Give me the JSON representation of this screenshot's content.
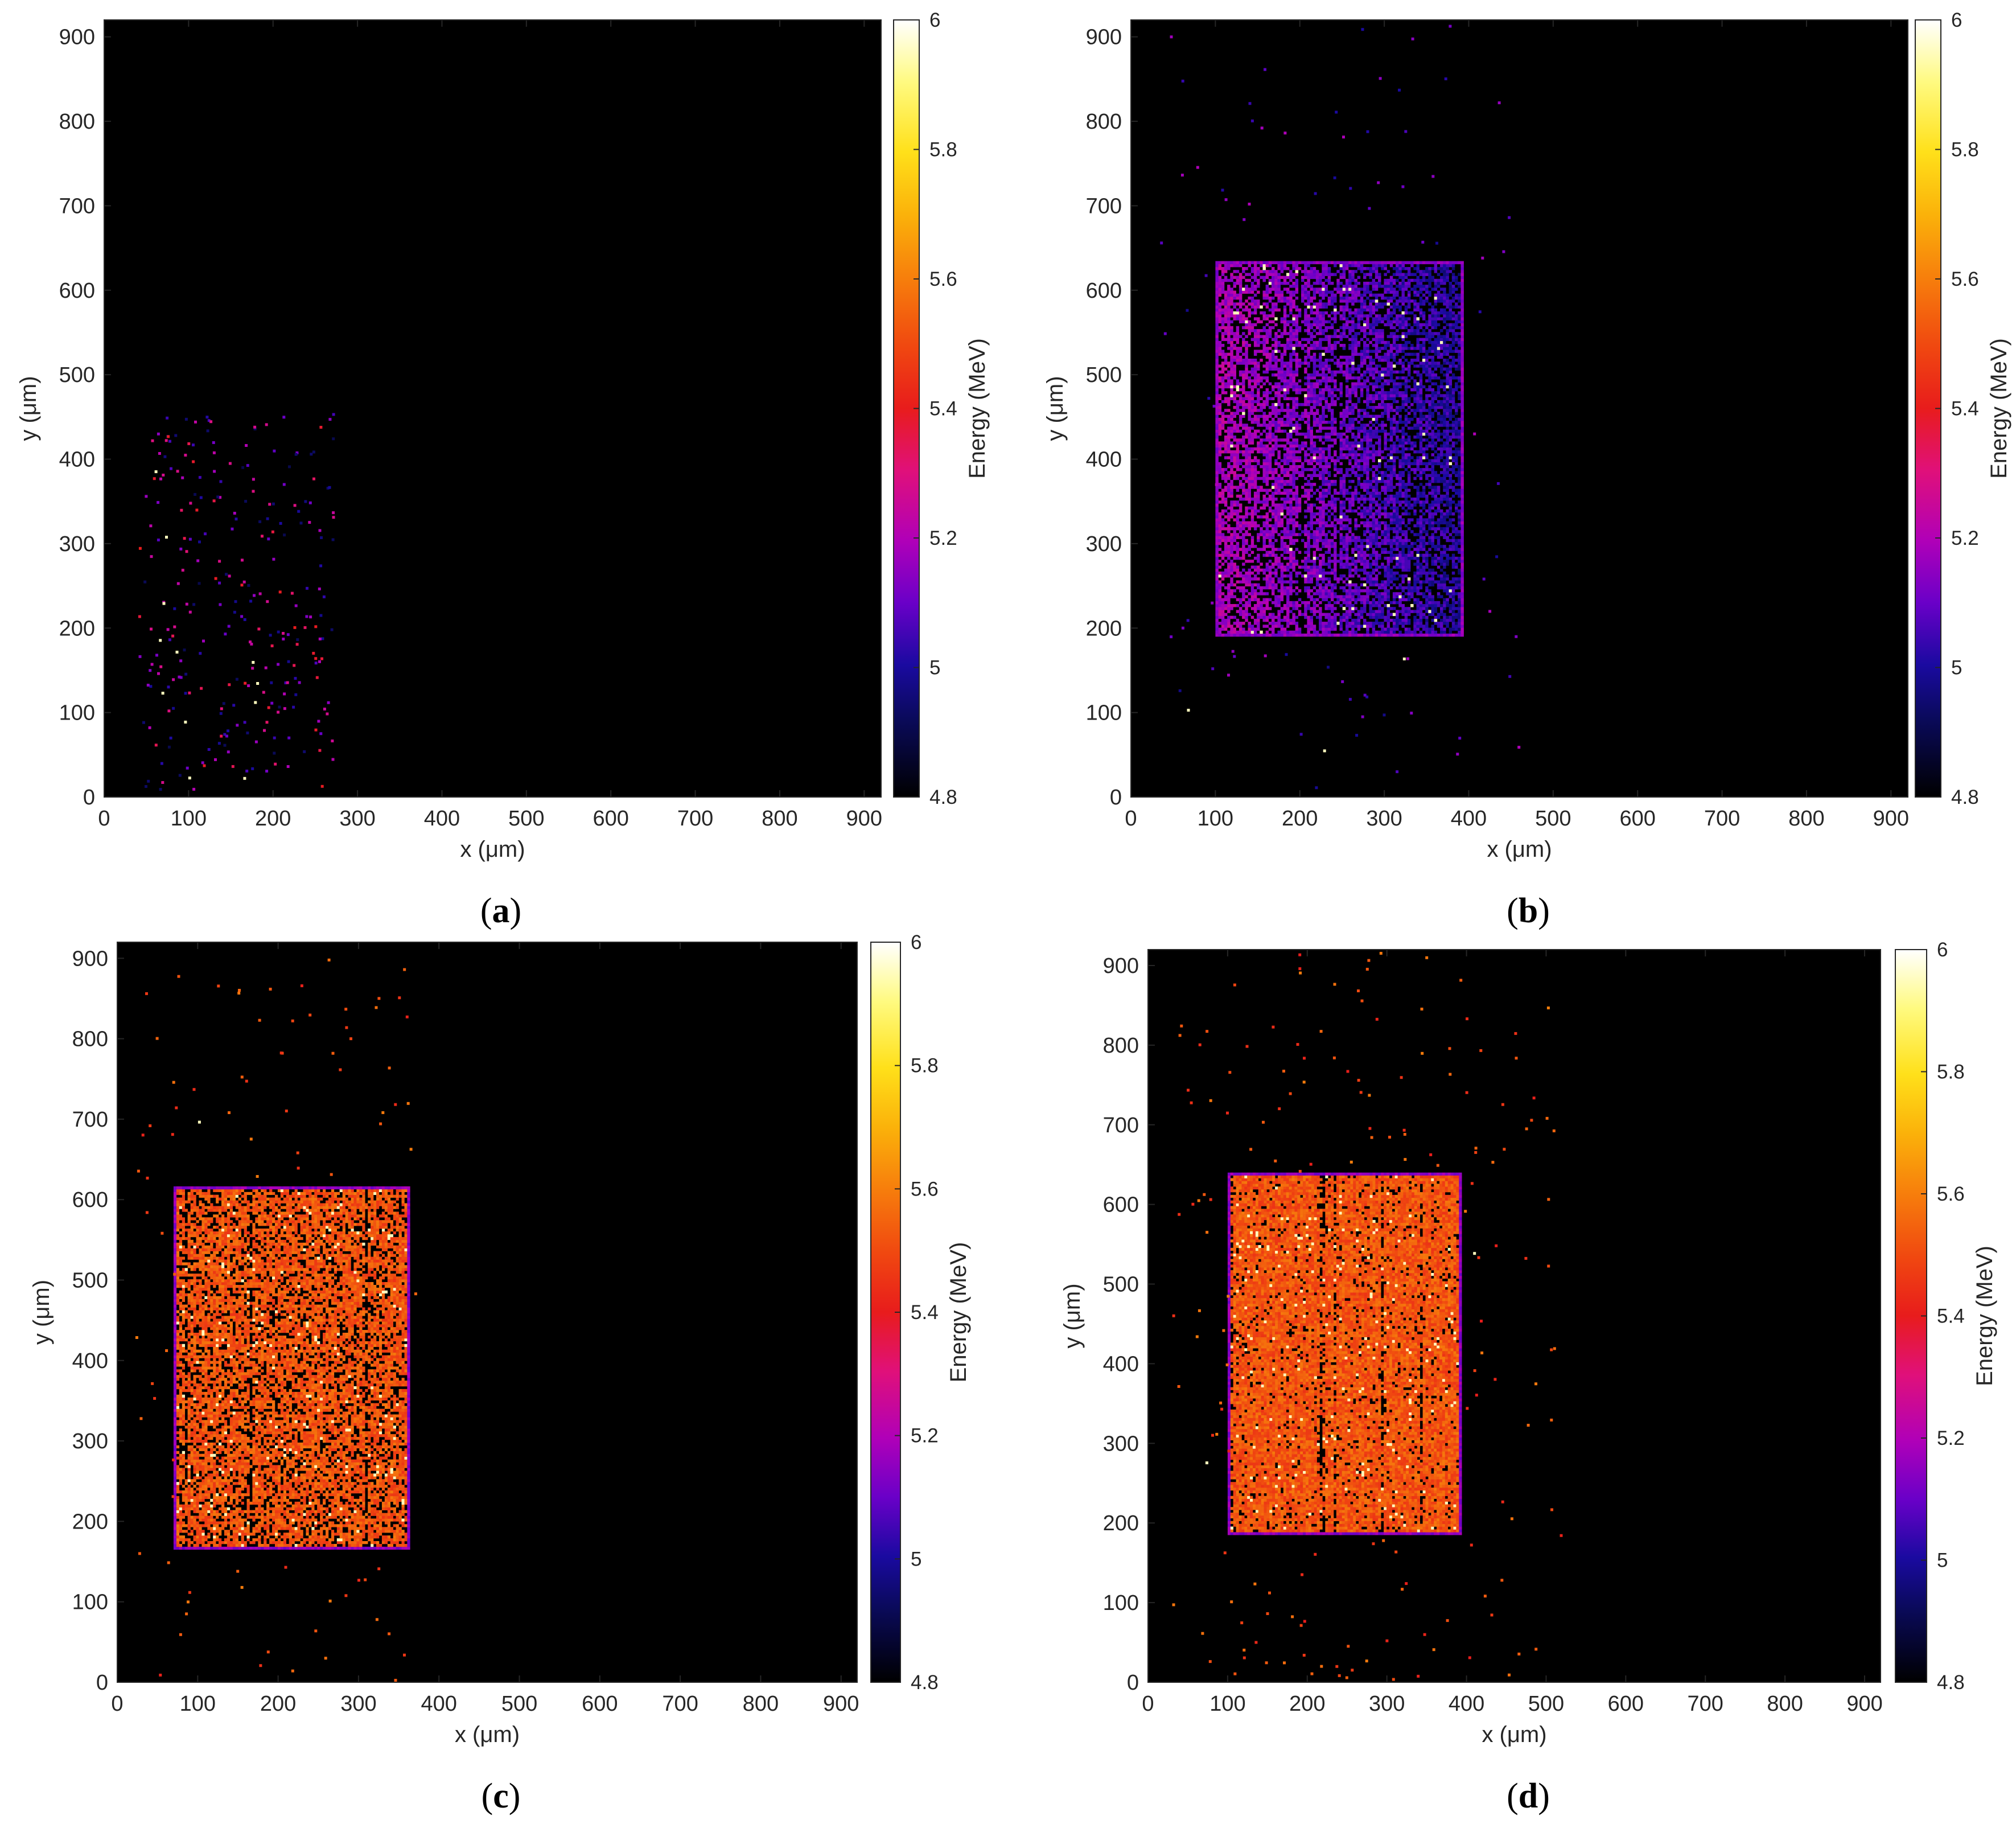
{
  "figure": {
    "panels": [
      {
        "id": "a",
        "caption_text": "(a)",
        "caption_letter": "a"
      },
      {
        "id": "b",
        "caption_text": "(b)",
        "caption_letter": "b"
      },
      {
        "id": "c",
        "caption_text": "(c)",
        "caption_letter": "c"
      },
      {
        "id": "d",
        "caption_text": "(d)",
        "caption_letter": "d"
      }
    ]
  },
  "chart_data": [
    {
      "panel": "a",
      "type": "heatmap",
      "xlabel": "x (μm)",
      "ylabel": "y (μm)",
      "xlim": [
        0,
        920
      ],
      "ylim": [
        0,
        920
      ],
      "xticks": [
        0,
        100,
        200,
        300,
        400,
        500,
        600,
        700,
        800,
        900
      ],
      "yticks": [
        0,
        100,
        200,
        300,
        400,
        500,
        600,
        700,
        800,
        900
      ],
      "colorbar": {
        "label": "Energy (MeV)",
        "range": [
          4.8,
          6.0
        ],
        "ticks": [
          4.8,
          5,
          5.2,
          5.4,
          5.6,
          5.8,
          6
        ],
        "colormap": "black-blue-purple-magenta-red-orange-yellow-white"
      },
      "background": "#000000",
      "region": null,
      "scatter": {
        "x_range": [
          40,
          270
        ],
        "y_range": [
          10,
          455
        ],
        "count": 280,
        "energy_range": [
          4.9,
          5.4
        ]
      }
    },
    {
      "panel": "b",
      "type": "heatmap",
      "xlabel": "x (μm)",
      "ylabel": "y (μm)",
      "xlim": [
        0,
        920
      ],
      "ylim": [
        0,
        920
      ],
      "xticks": [
        0,
        100,
        200,
        300,
        400,
        500,
        600,
        700,
        800,
        900
      ],
      "yticks": [
        0,
        100,
        200,
        300,
        400,
        500,
        600,
        700,
        800,
        900
      ],
      "colorbar": {
        "label": "Energy (MeV)",
        "range": [
          4.8,
          6.0
        ],
        "ticks": [
          4.8,
          5,
          5.2,
          5.4,
          5.6,
          5.8,
          6
        ],
        "colormap": "black-blue-purple-magenta-red-orange-yellow-white"
      },
      "background": "#000000",
      "region": {
        "x": [
          100,
          395
        ],
        "y": [
          190,
          635
        ],
        "energy_left": 5.2,
        "energy_right": 5.0,
        "void_fraction": 0.33,
        "white_fraction": 0.012
      },
      "scatter": {
        "x_range": [
          30,
          460
        ],
        "y_range": [
          0,
          920
        ],
        "count": 110,
        "energy_range": [
          4.95,
          5.2
        ]
      }
    },
    {
      "panel": "c",
      "type": "heatmap",
      "xlabel": "x (μm)",
      "ylabel": "y (μm)",
      "xlim": [
        0,
        920
      ],
      "ylim": [
        0,
        920
      ],
      "xticks": [
        0,
        100,
        200,
        300,
        400,
        500,
        600,
        700,
        800,
        900
      ],
      "yticks": [
        0,
        100,
        200,
        300,
        400,
        500,
        600,
        700,
        800,
        900
      ],
      "colorbar": {
        "label": "Energy (MeV)",
        "range": [
          4.8,
          6.0
        ],
        "ticks": [
          4.8,
          5,
          5.2,
          5.4,
          5.6,
          5.8,
          6
        ],
        "colormap": "black-blue-purple-magenta-red-orange-yellow-white"
      },
      "background": "#000000",
      "region": {
        "x": [
          70,
          365
        ],
        "y": [
          165,
          615
        ],
        "energy_left": 5.52,
        "energy_right": 5.52,
        "void_fraction": 0.25,
        "white_fraction": 0.03
      },
      "scatter": {
        "x_range": [
          20,
          370
        ],
        "y_range": [
          0,
          900
        ],
        "count": 130,
        "energy_range": [
          5.4,
          5.6
        ]
      }
    },
    {
      "panel": "d",
      "type": "heatmap",
      "xlabel": "x (μm)",
      "ylabel": "y (μm)",
      "xlim": [
        0,
        920
      ],
      "ylim": [
        0,
        920
      ],
      "xticks": [
        0,
        100,
        200,
        300,
        400,
        500,
        600,
        700,
        800,
        900
      ],
      "yticks": [
        0,
        100,
        200,
        300,
        400,
        500,
        600,
        700,
        800,
        900
      ],
      "colorbar": {
        "label": "Energy (MeV)",
        "range": [
          4.8,
          6.0
        ],
        "ticks": [
          4.8,
          5,
          5.2,
          5.4,
          5.6,
          5.8,
          6
        ],
        "colormap": "black-blue-purple-magenta-red-orange-yellow-white"
      },
      "background": "#000000",
      "region": {
        "x": [
          100,
          395
        ],
        "y": [
          185,
          640
        ],
        "energy_left": 5.52,
        "energy_right": 5.52,
        "void_fraction": 0.08,
        "white_fraction": 0.02
      },
      "scatter": {
        "x_range": [
          30,
          520
        ],
        "y_range": [
          0,
          920
        ],
        "count": 220,
        "energy_range": [
          5.4,
          5.6
        ]
      }
    }
  ]
}
